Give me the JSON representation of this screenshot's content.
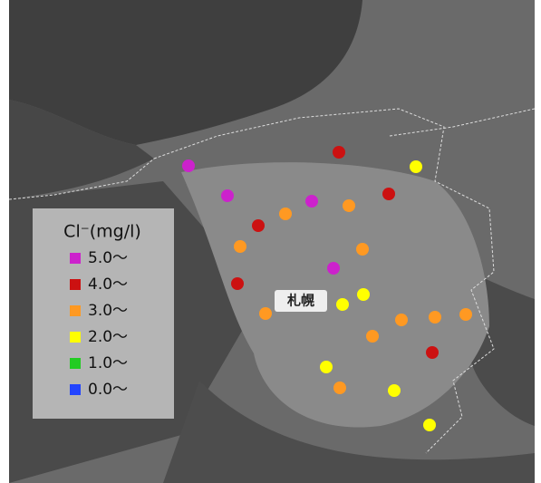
{
  "legend": {
    "title": "Cl⁻(mg/l)",
    "items": [
      {
        "label": "5.0〜",
        "color": "#cc22cc"
      },
      {
        "label": "4.0〜",
        "color": "#cc1111"
      },
      {
        "label": "3.0〜",
        "color": "#ff9922"
      },
      {
        "label": "2.0〜",
        "color": "#ffff00"
      },
      {
        "label": "1.0〜",
        "color": "#22cc22"
      },
      {
        "label": "0.0〜",
        "color": "#2244ff"
      }
    ]
  },
  "place_label": "札幌",
  "stations": [
    0,
    0,
    0,
    0,
    1,
    1,
    1,
    1,
    1,
    2,
    2,
    2,
    2,
    2,
    2,
    2,
    2,
    2,
    2,
    3,
    3,
    3,
    3,
    3,
    3
  ]
}
